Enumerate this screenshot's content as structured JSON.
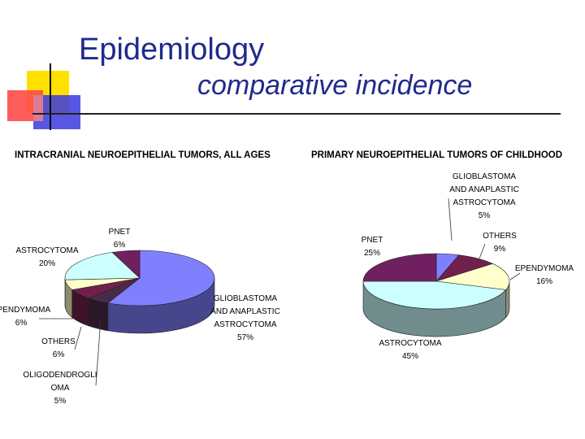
{
  "slide": {
    "title": "Epidemiology",
    "subtitle": "comparative incidence",
    "colors": {
      "title": "#1f2a8c",
      "deco_yellow": "#ffe000",
      "deco_red": "#ff4a4a",
      "deco_blue": "#3a3adf"
    }
  },
  "chart_data": [
    {
      "type": "pie",
      "title": "INTRACRANIAL NEUROEPITHELIAL TUMORS, ALL AGES",
      "slices": [
        {
          "label": [
            "GLIOBLASTOMA",
            "AND ANAPLASTIC",
            "ASTROCYTOMA"
          ],
          "value": 57,
          "pct": "57%",
          "color": "#8080ff"
        },
        {
          "label": [
            "OLIGODENDROGLI",
            "OMA"
          ],
          "value": 5,
          "pct": "5%",
          "color": "#4a2a4a"
        },
        {
          "label": [
            "OTHERS"
          ],
          "value": 6,
          "pct": "6%",
          "color": "#70204a"
        },
        {
          "label": [
            "EPENDYMOMA"
          ],
          "value": 6,
          "pct": "6%",
          "color": "#ffffcc"
        },
        {
          "label": [
            "ASTROCYTOMA"
          ],
          "value": 20,
          "pct": "20%",
          "color": "#ccffff"
        },
        {
          "label": [
            "PNET"
          ],
          "value": 6,
          "pct": "6%",
          "color": "#702060"
        }
      ]
    },
    {
      "type": "pie",
      "title": "PRIMARY NEUROEPITHELIAL TUMORS OF CHILDHOOD",
      "slices": [
        {
          "label": [
            "GLIOBLASTOMA",
            "AND ANAPLASTIC",
            "ASTROCYTOMA"
          ],
          "value": 5,
          "pct": "5%",
          "color": "#8080ff"
        },
        {
          "label": [
            "OTHERS"
          ],
          "value": 9,
          "pct": "9%",
          "color": "#70204a"
        },
        {
          "label": [
            "EPENDYMOMA"
          ],
          "value": 16,
          "pct": "16%",
          "color": "#ffffcc"
        },
        {
          "label": [
            "ASTROCYTOMA"
          ],
          "value": 45,
          "pct": "45%",
          "color": "#ccffff"
        },
        {
          "label": [
            "PNET"
          ],
          "value": 25,
          "pct": "25%",
          "color": "#702060"
        }
      ]
    }
  ]
}
